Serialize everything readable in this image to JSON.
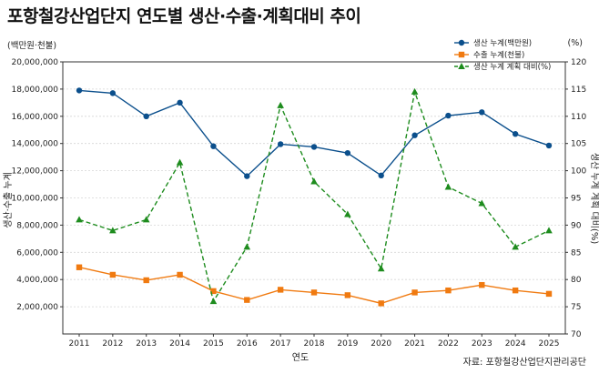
{
  "title": "포항철강산업단지 연도별 생산·수출·계획대비 추이",
  "left_unit": "(백만원·천불)",
  "right_unit": "(%)",
  "source": "자료: 포항철강산업단지관리공단",
  "colors": {
    "production": "#0b4f8c",
    "export": "#f07a10",
    "ratio": "#1e8c1e"
  },
  "chart_data": {
    "type": "line",
    "x": [
      "2011",
      "2012",
      "2013",
      "2014",
      "2015",
      "2016",
      "2017",
      "2018",
      "2019",
      "2020",
      "2021",
      "2022",
      "2023",
      "2024",
      "2025"
    ],
    "xlabel": "연도",
    "ylabel": "생산·수출 누계",
    "y2label": "생산 누계 계획 대비(%)",
    "ylim": [
      0,
      20000000
    ],
    "y2lim": [
      70,
      120
    ],
    "yticks": [
      "2,000,000",
      "4,000,000",
      "6,000,000",
      "8,000,000",
      "10,000,000",
      "12,000,000",
      "14,000,000",
      "16,000,000",
      "18,000,000",
      "20,000,000"
    ],
    "y2ticks": [
      "70",
      "75",
      "80",
      "85",
      "90",
      "95",
      "100",
      "105",
      "110",
      "115",
      "120"
    ],
    "legend_position": "top-right",
    "grid": true,
    "series": [
      {
        "name": "생산 누계(백만원)",
        "axis": "left",
        "marker": "circle",
        "style": "solid",
        "values": [
          17900000,
          17700000,
          16000000,
          17000000,
          13800000,
          11600000,
          13950000,
          13750000,
          13300000,
          11650000,
          14600000,
          16050000,
          16300000,
          14700000,
          13850000
        ]
      },
      {
        "name": "수출 누계(천불)",
        "axis": "left",
        "marker": "square",
        "style": "solid",
        "values": [
          4900000,
          4350000,
          3950000,
          4350000,
          3150000,
          2500000,
          3250000,
          3050000,
          2850000,
          2250000,
          3050000,
          3200000,
          3600000,
          3200000,
          2950000
        ]
      },
      {
        "name": "생산 누계 계획 대비(%)",
        "axis": "right",
        "marker": "triangle",
        "style": "dashed",
        "values": [
          91,
          89,
          91,
          101.5,
          76,
          86,
          112,
          98,
          92,
          82,
          114.5,
          97,
          94,
          86,
          89
        ]
      }
    ]
  }
}
